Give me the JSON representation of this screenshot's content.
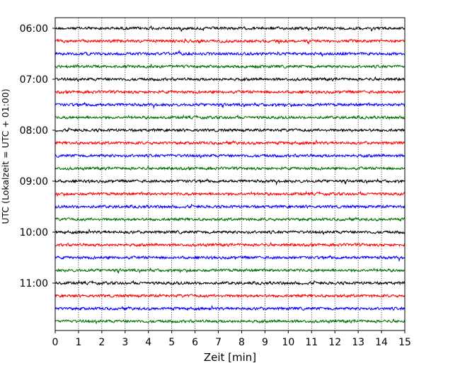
{
  "chart_data": {
    "type": "line",
    "title": "",
    "xlabel": "Zeit  [min]",
    "ylabel": "UTC (Lokalzeit = UTC + 01:00)",
    "xlim": [
      0,
      15
    ],
    "x_ticks": [
      0,
      1,
      2,
      3,
      4,
      5,
      6,
      7,
      8,
      9,
      10,
      11,
      12,
      13,
      14,
      15
    ],
    "y_tick_labels": [
      "06:00",
      "07:00",
      "08:00",
      "09:00",
      "10:00",
      "11:00"
    ],
    "traces_per_hour": 4,
    "trace_start_times": [
      "06:00",
      "06:15",
      "06:30",
      "06:45",
      "07:00",
      "07:15",
      "07:30",
      "07:45",
      "08:00",
      "08:15",
      "08:30",
      "08:45",
      "09:00",
      "09:15",
      "09:30",
      "09:45",
      "10:00",
      "10:15",
      "10:30",
      "10:45",
      "11:00",
      "11:15",
      "11:30",
      "11:45"
    ],
    "trace_colors": [
      "#000000",
      "#ff0000",
      "#0000ff",
      "#007000"
    ],
    "grid": "vertical dotted lines at each minute",
    "legend": "none"
  }
}
